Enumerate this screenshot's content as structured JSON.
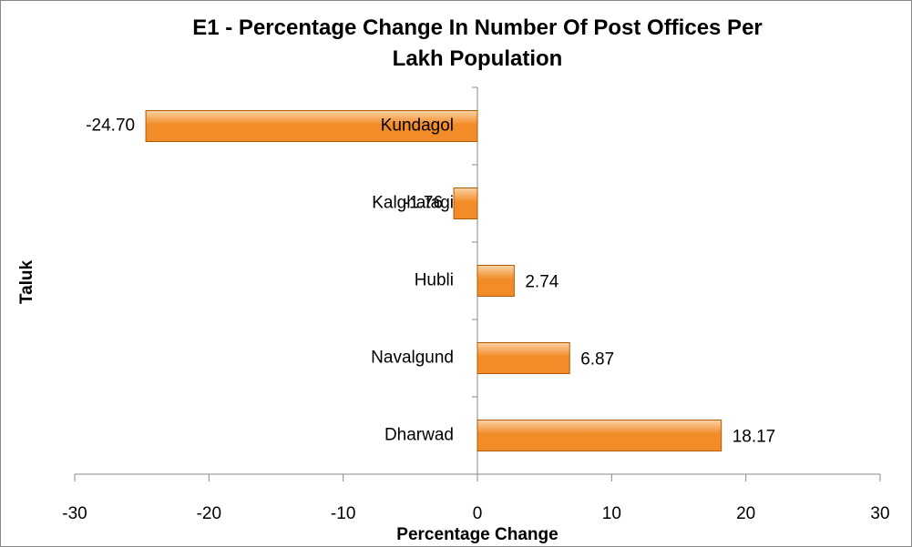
{
  "chart_data": {
    "type": "bar",
    "orientation": "horizontal",
    "title": "E1 - Percentage Change In Number Of Post Offices Per Lakh Population",
    "xlabel": "Percentage Change",
    "ylabel": "Taluk",
    "categories": [
      "Kundagol",
      "Kalghatagi",
      "Hubli",
      "Navalgund",
      "Dharwad"
    ],
    "values": [
      -24.7,
      -1.76,
      2.74,
      6.87,
      18.17
    ],
    "value_labels": [
      "-24.70",
      "-1.76",
      "2.74",
      "6.87",
      "18.17"
    ],
    "color": "#f28c28",
    "xlim": [
      -30,
      30
    ],
    "xticks": [
      -30,
      -20,
      -10,
      0,
      10,
      20,
      30
    ],
    "grid": false
  }
}
